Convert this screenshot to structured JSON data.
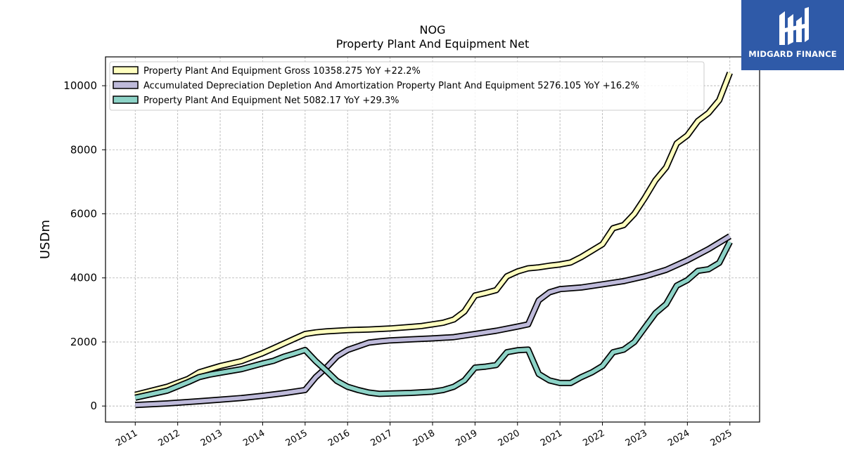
{
  "brand": {
    "name": "MIDGARD FINANCE",
    "color": "#2f5aa8"
  },
  "chart_data": {
    "type": "line",
    "title": "NOG",
    "subtitle": "Property Plant And Equipment Net",
    "ylabel": "USDm",
    "xlabel": "",
    "ylim": [
      -500,
      10900
    ],
    "xlim": [
      2010.3,
      2025.7
    ],
    "yticks": [
      0,
      2000,
      4000,
      6000,
      8000,
      10000
    ],
    "xticks": [
      "2011",
      "2012",
      "2013",
      "2014",
      "2015",
      "2016",
      "2017",
      "2018",
      "2019",
      "2020",
      "2021",
      "2022",
      "2023",
      "2024",
      "2025"
    ],
    "grid": true,
    "legend_position": "top-left",
    "series": [
      {
        "name": "Property Plant And Equipment Gross  10358.275 YoY +22.2%",
        "color": "#ffffbf",
        "points": [
          [
            2011.0,
            350
          ],
          [
            2011.75,
            600
          ],
          [
            2012.25,
            850
          ],
          [
            2012.5,
            1050
          ],
          [
            2012.75,
            1150
          ],
          [
            2013.0,
            1250
          ],
          [
            2013.5,
            1400
          ],
          [
            2014.0,
            1650
          ],
          [
            2014.25,
            1800
          ],
          [
            2014.5,
            1950
          ],
          [
            2014.75,
            2100
          ],
          [
            2015.0,
            2250
          ],
          [
            2015.25,
            2300
          ],
          [
            2015.5,
            2330
          ],
          [
            2015.75,
            2350
          ],
          [
            2016.0,
            2370
          ],
          [
            2016.5,
            2390
          ],
          [
            2017.0,
            2420
          ],
          [
            2017.5,
            2470
          ],
          [
            2017.75,
            2500
          ],
          [
            2018.0,
            2550
          ],
          [
            2018.25,
            2600
          ],
          [
            2018.5,
            2700
          ],
          [
            2018.75,
            2950
          ],
          [
            2019.0,
            3450
          ],
          [
            2019.25,
            3530
          ],
          [
            2019.5,
            3620
          ],
          [
            2019.75,
            4050
          ],
          [
            2020.0,
            4200
          ],
          [
            2020.25,
            4300
          ],
          [
            2020.5,
            4330
          ],
          [
            2020.75,
            4380
          ],
          [
            2021.0,
            4420
          ],
          [
            2021.25,
            4480
          ],
          [
            2021.5,
            4650
          ],
          [
            2021.75,
            4850
          ],
          [
            2022.0,
            5050
          ],
          [
            2022.25,
            5550
          ],
          [
            2022.5,
            5650
          ],
          [
            2022.75,
            6000
          ],
          [
            2023.0,
            6500
          ],
          [
            2023.25,
            7050
          ],
          [
            2023.5,
            7450
          ],
          [
            2023.75,
            8200
          ],
          [
            2024.0,
            8450
          ],
          [
            2024.25,
            8900
          ],
          [
            2024.5,
            9150
          ],
          [
            2024.75,
            9550
          ],
          [
            2025.0,
            10400
          ]
        ]
      },
      {
        "name": "Accumulated Depreciation Depletion And Amortization Property Plant And Equipment  5276.105 YoY +16.2%",
        "color": "#bebada",
        "points": [
          [
            2011.0,
            30
          ],
          [
            2011.75,
            80
          ],
          [
            2012.5,
            150
          ],
          [
            2013.0,
            200
          ],
          [
            2013.5,
            250
          ],
          [
            2014.0,
            320
          ],
          [
            2014.5,
            400
          ],
          [
            2015.0,
            500
          ],
          [
            2015.25,
            900
          ],
          [
            2015.5,
            1200
          ],
          [
            2015.75,
            1550
          ],
          [
            2016.0,
            1750
          ],
          [
            2016.5,
            1980
          ],
          [
            2016.75,
            2020
          ],
          [
            2017.0,
            2050
          ],
          [
            2017.5,
            2080
          ],
          [
            2018.0,
            2110
          ],
          [
            2018.5,
            2150
          ],
          [
            2019.0,
            2250
          ],
          [
            2019.5,
            2350
          ],
          [
            2020.0,
            2480
          ],
          [
            2020.25,
            2550
          ],
          [
            2020.5,
            3300
          ],
          [
            2020.75,
            3550
          ],
          [
            2021.0,
            3650
          ],
          [
            2021.5,
            3700
          ],
          [
            2022.0,
            3800
          ],
          [
            2022.5,
            3900
          ],
          [
            2023.0,
            4050
          ],
          [
            2023.5,
            4250
          ],
          [
            2024.0,
            4550
          ],
          [
            2024.5,
            4900
          ],
          [
            2025.0,
            5300
          ]
        ]
      },
      {
        "name": "Property Plant And Equipment Net  5082.17 YoY +29.3%",
        "color": "#8dd3c7",
        "points": [
          [
            2011.0,
            260
          ],
          [
            2011.75,
            480
          ],
          [
            2012.25,
            750
          ],
          [
            2012.5,
            900
          ],
          [
            2012.75,
            980
          ],
          [
            2013.0,
            1040
          ],
          [
            2013.5,
            1150
          ],
          [
            2014.0,
            1330
          ],
          [
            2014.25,
            1410
          ],
          [
            2014.5,
            1540
          ],
          [
            2014.75,
            1640
          ],
          [
            2015.0,
            1750
          ],
          [
            2015.25,
            1400
          ],
          [
            2015.5,
            1100
          ],
          [
            2015.75,
            780
          ],
          [
            2016.0,
            600
          ],
          [
            2016.25,
            500
          ],
          [
            2016.5,
            420
          ],
          [
            2016.75,
            380
          ],
          [
            2017.0,
            390
          ],
          [
            2017.5,
            410
          ],
          [
            2017.75,
            430
          ],
          [
            2018.0,
            450
          ],
          [
            2018.25,
            500
          ],
          [
            2018.5,
            600
          ],
          [
            2018.75,
            800
          ],
          [
            2019.0,
            1200
          ],
          [
            2019.25,
            1230
          ],
          [
            2019.5,
            1280
          ],
          [
            2019.75,
            1680
          ],
          [
            2020.0,
            1740
          ],
          [
            2020.25,
            1760
          ],
          [
            2020.5,
            1000
          ],
          [
            2020.75,
            800
          ],
          [
            2021.0,
            720
          ],
          [
            2021.25,
            720
          ],
          [
            2021.5,
            900
          ],
          [
            2021.75,
            1050
          ],
          [
            2022.0,
            1250
          ],
          [
            2022.25,
            1680
          ],
          [
            2022.5,
            1760
          ],
          [
            2022.75,
            2000
          ],
          [
            2023.0,
            2450
          ],
          [
            2023.25,
            2900
          ],
          [
            2023.5,
            3180
          ],
          [
            2023.75,
            3760
          ],
          [
            2024.0,
            3930
          ],
          [
            2024.25,
            4220
          ],
          [
            2024.5,
            4270
          ],
          [
            2024.75,
            4470
          ],
          [
            2025.0,
            5120
          ]
        ]
      }
    ]
  }
}
